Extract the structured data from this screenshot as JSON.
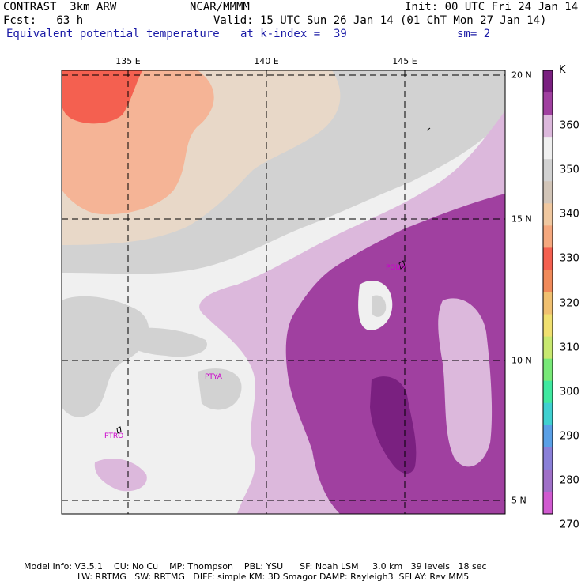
{
  "header": {
    "model": "CONTRAST  3km ARW",
    "source": "NCAR/MMMM",
    "init": "Init: 00 UTC Fri 24 Jan 14",
    "fcst": "Fcst:   63 h",
    "valid": "Valid: 15 UTC Sun 26 Jan 14 (01 ChT Mon 27 Jan 14)",
    "field": "Equivalent potential temperature",
    "level": "at k-index =  39",
    "smooth": "sm= 2"
  },
  "map": {
    "lon_labels": [
      "135 E",
      "140 E",
      "145 E"
    ],
    "lat_labels": [
      "20 N",
      "15 N",
      "10 N",
      "5 N"
    ],
    "stations": [
      "PGUM",
      "PTYA",
      "PTRO"
    ]
  },
  "colorbar": {
    "unit": "K",
    "labels": [
      "360",
      "350",
      "340",
      "330",
      "320",
      "310",
      "300",
      "290",
      "280",
      "270"
    ],
    "colors": [
      "#a040a0",
      "#dcb8dc",
      "#f0f0f0",
      "#d2d2d2",
      "#d2c5b8",
      "#f0c8a0",
      "#f5a87e",
      "#f46050",
      "#f08a5a",
      "#f0c070",
      "#f0e070",
      "#c8e870",
      "#78e878",
      "#40e8a0",
      "#40d0d0",
      "#5aa0e6",
      "#8a80d8",
      "#a070c8",
      "#d05ad0"
    ],
    "top_color": "#7a2080"
  },
  "footer": {
    "line1": "Model Info: V3.5.1    CU: No Cu    MP: Thompson    PBL: YSU      SF: Noah LSM     3.0 km   39 levels   18 sec",
    "line2": "LW: RRTMG   SW: RRTMG   DIFF: simple KM: 3D Smagor DAMP: Rayleigh3  SFLAY: Rev MM5"
  }
}
